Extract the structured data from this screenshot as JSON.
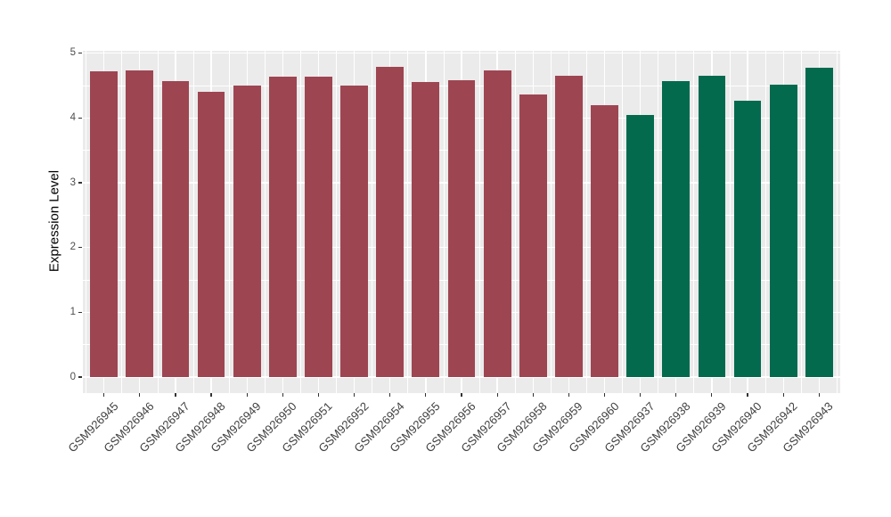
{
  "figure": {
    "background_color": "#FFFFFF",
    "panel_background_color": "#EBEBEB",
    "grid_color": "#FFFFFF",
    "axis_text_color": "#4D4D4D",
    "axis_title_color": "#000000",
    "tick_mark_color": "#333333"
  },
  "chart_data": {
    "type": "bar",
    "title": "",
    "xlabel": "",
    "ylabel": "Expression Level",
    "categories": [
      "GSM926945",
      "GSM926946",
      "GSM926947",
      "GSM926948",
      "GSM926949",
      "GSM926950",
      "GSM926951",
      "GSM926952",
      "GSM926954",
      "GSM926955",
      "GSM926956",
      "GSM926957",
      "GSM926958",
      "GSM926959",
      "GSM926960",
      "GSM926937",
      "GSM926938",
      "GSM926939",
      "GSM926940",
      "GSM926942",
      "GSM926943"
    ],
    "values": [
      4.72,
      4.74,
      4.57,
      4.4,
      4.5,
      4.64,
      4.64,
      4.5,
      4.79,
      4.55,
      4.58,
      4.74,
      4.36,
      4.65,
      4.2,
      4.05,
      4.57,
      4.65,
      4.27,
      4.52,
      4.78
    ],
    "bar_group": [
      "g1",
      "g1",
      "g1",
      "g1",
      "g1",
      "g1",
      "g1",
      "g1",
      "g1",
      "g1",
      "g1",
      "g1",
      "g1",
      "g1",
      "g1",
      "g2",
      "g2",
      "g2",
      "g2",
      "g2",
      "g2"
    ],
    "group_colors": {
      "g1": "#9E4552",
      "g2": "#036A4E"
    },
    "ylim": [
      0,
      5
    ],
    "yticks": [
      0,
      1,
      2,
      3,
      4,
      5
    ],
    "yticks_minor": [
      0.5,
      1.5,
      2.5,
      3.5,
      4.5
    ],
    "grid": "major-and-minor-white-on-gray",
    "legend": "none",
    "x_label_rotation_deg": 45
  }
}
